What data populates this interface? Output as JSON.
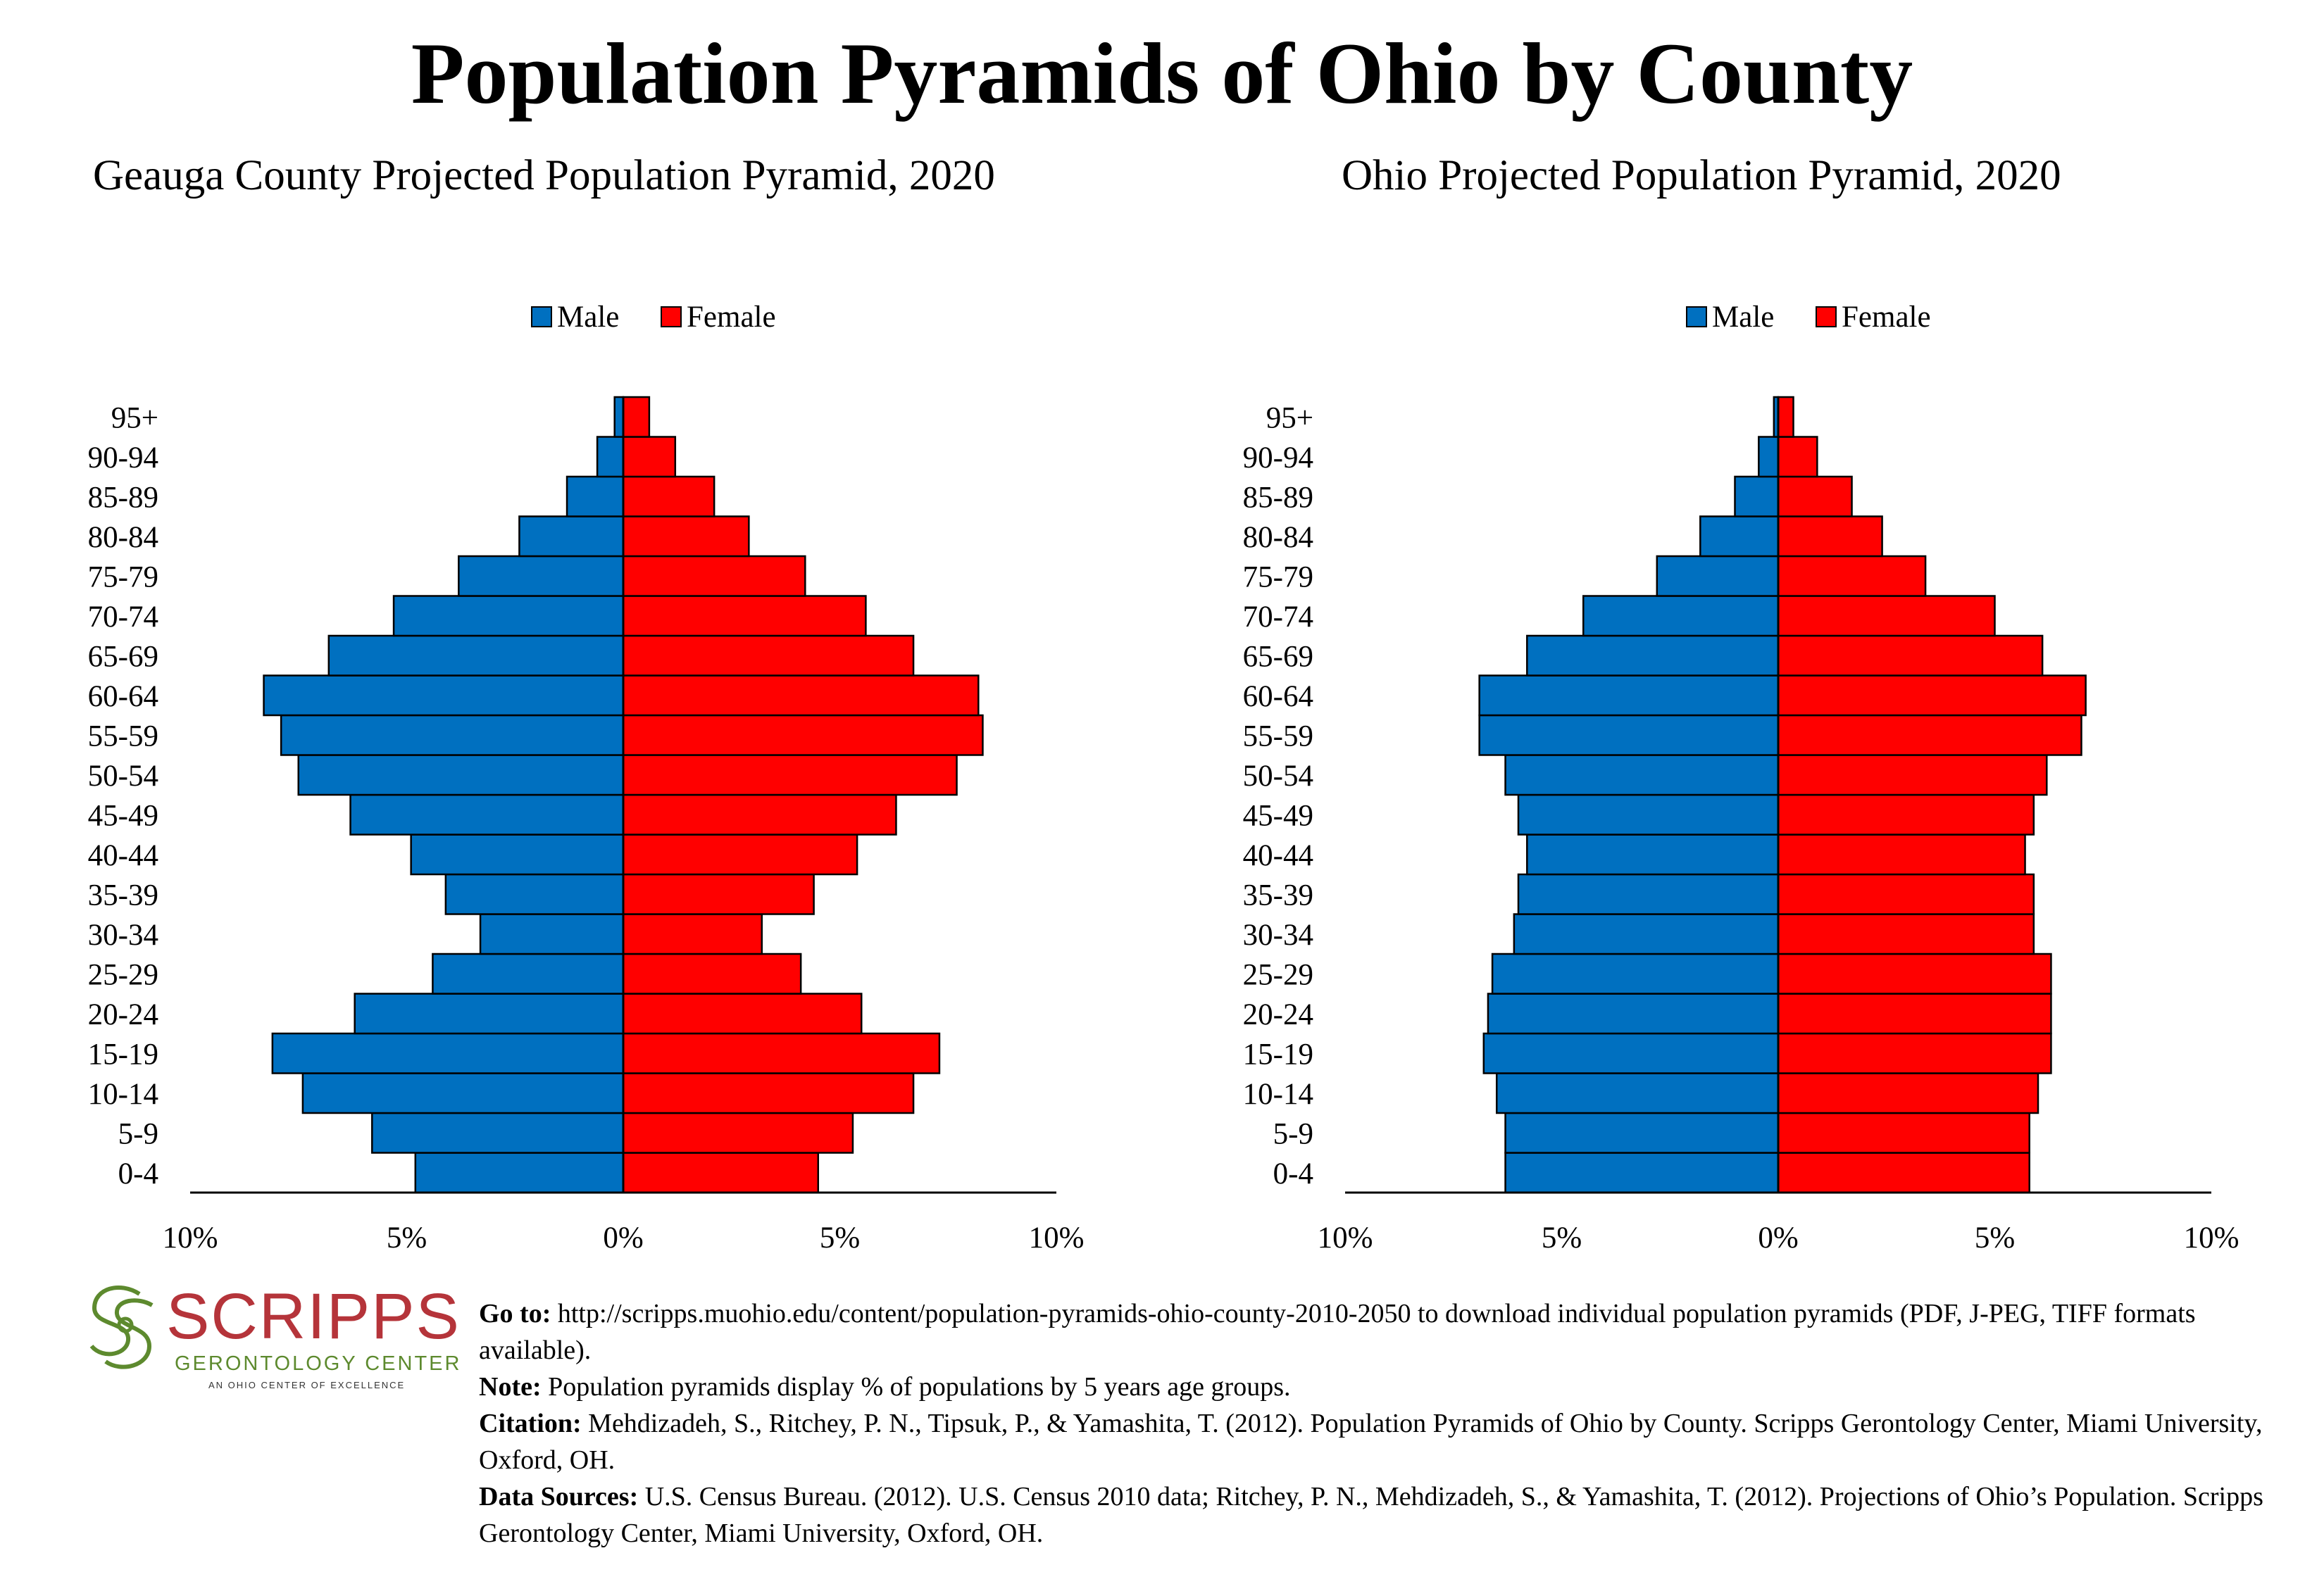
{
  "main_title": "Population Pyramids of Ohio by County",
  "chart_data": [
    {
      "type": "bar",
      "title": "Geauga County Projected Population Pyramid, 2020",
      "categories": [
        "0-4",
        "5-9",
        "10-14",
        "15-19",
        "20-24",
        "25-29",
        "30-34",
        "35-39",
        "40-44",
        "45-49",
        "50-54",
        "55-59",
        "60-64",
        "65-69",
        "70-74",
        "75-79",
        "80-84",
        "85-89",
        "90-94",
        "95+"
      ],
      "series": [
        {
          "name": "Male",
          "color": "#0070c0",
          "values": [
            4.8,
            5.8,
            7.4,
            8.1,
            6.2,
            4.4,
            3.3,
            4.1,
            4.9,
            6.3,
            7.5,
            7.9,
            8.3,
            6.8,
            5.3,
            3.8,
            2.4,
            1.3,
            0.6,
            0.2
          ]
        },
        {
          "name": "Female",
          "color": "#ff0000",
          "values": [
            4.5,
            5.3,
            6.7,
            7.3,
            5.5,
            4.1,
            3.2,
            4.4,
            5.4,
            6.3,
            7.7,
            8.3,
            8.2,
            6.7,
            5.6,
            4.2,
            2.9,
            2.1,
            1.2,
            0.6
          ]
        }
      ],
      "xlim": [
        -10,
        10
      ],
      "ticks": [
        "10%",
        "5%",
        "0%",
        "5%",
        "10%"
      ],
      "legend": "top-center"
    },
    {
      "type": "bar",
      "title": "Ohio Projected Population Pyramid, 2020",
      "categories": [
        "0-4",
        "5-9",
        "10-14",
        "15-19",
        "20-24",
        "25-29",
        "30-34",
        "35-39",
        "40-44",
        "45-49",
        "50-54",
        "55-59",
        "60-64",
        "65-69",
        "70-74",
        "75-79",
        "80-84",
        "85-89",
        "90-94",
        "95+"
      ],
      "series": [
        {
          "name": "Male",
          "color": "#0070c0",
          "values": [
            6.3,
            6.3,
            6.5,
            6.8,
            6.7,
            6.6,
            6.1,
            6.0,
            5.8,
            6.0,
            6.3,
            6.9,
            6.9,
            5.8,
            4.5,
            2.8,
            1.8,
            1.0,
            0.45,
            0.1
          ]
        },
        {
          "name": "Female",
          "color": "#ff0000",
          "values": [
            5.8,
            5.8,
            6.0,
            6.3,
            6.3,
            6.3,
            5.9,
            5.9,
            5.7,
            5.9,
            6.2,
            7.0,
            7.1,
            6.1,
            5.0,
            3.4,
            2.4,
            1.7,
            0.9,
            0.35
          ]
        }
      ],
      "xlim": [
        -10,
        10
      ],
      "ticks": [
        "10%",
        "5%",
        "0%",
        "5%",
        "10%"
      ],
      "legend": "top-center"
    }
  ],
  "logo": {
    "name": "SCRIPPS",
    "subtitle": "GERONTOLOGY CENTER",
    "tagline": "AN OHIO CENTER OF EXCELLENCE"
  },
  "notes": {
    "goto_label": "Go to:",
    "goto_text": " http://scripps.muohio.edu/content/population-pyramids-ohio-county-2010-2050 to download individual population pyramids (PDF, J-PEG, TIFF formats available).",
    "note_label": "Note:",
    "note_text": " Population pyramids display % of populations by 5 years age groups.",
    "citation_label": "Citation:",
    "citation_text": " Mehdizadeh, S., Ritchey, P. N., Tipsuk, P., & Yamashita, T. (2012). Population Pyramids of Ohio by County. Scripps Gerontology Center, Miami University, Oxford, OH.",
    "sources_label": "Data Sources:",
    "sources_text": " U.S. Census Bureau. (2012). U.S. Census 2010 data; Ritchey, P. N., Mehdizadeh, S., & Yamashita, T. (2012). Projections of Ohio’s Population. Scripps Gerontology Center, Miami University, Oxford, OH."
  }
}
